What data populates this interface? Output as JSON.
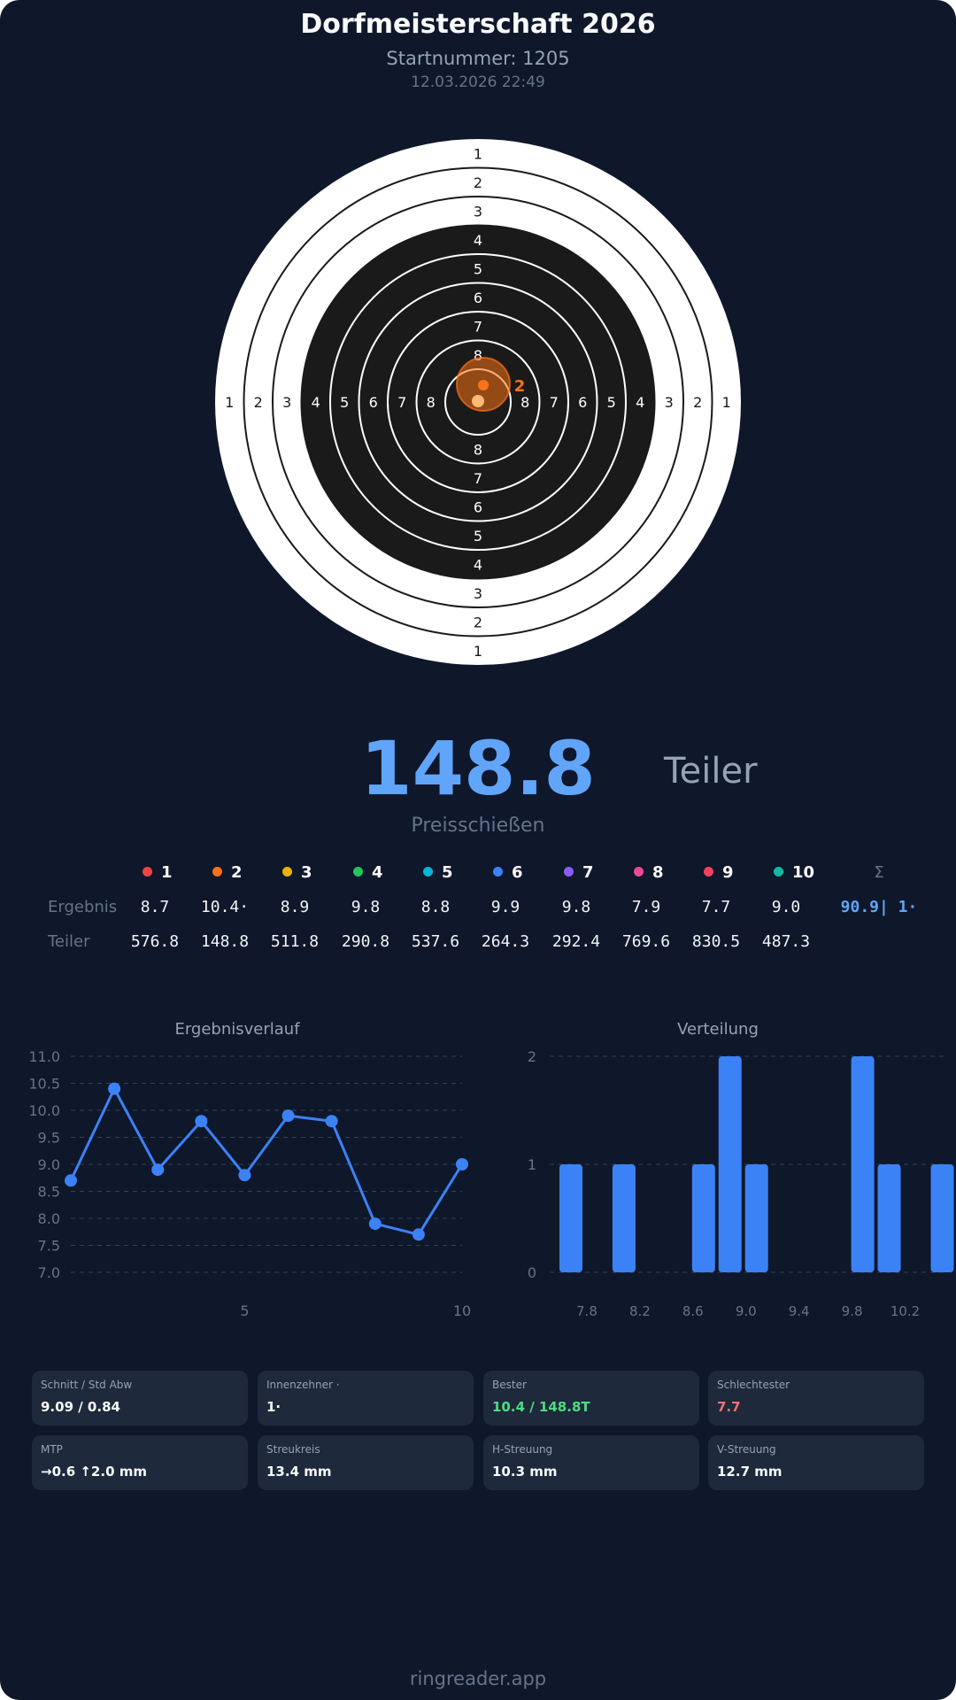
{
  "header": {
    "title": "Dorfmeisterschaft 2026",
    "start_number": "Startnummer: 1205",
    "datetime": "12.03.2026 22:49"
  },
  "target": {
    "ring_labels": [
      "1",
      "2",
      "3",
      "4",
      "5",
      "6",
      "7",
      "8"
    ],
    "highlighted_shot_label": "2",
    "highlight_color": "#f97316"
  },
  "result": {
    "value": "148.8",
    "unit": "Teiler",
    "mode": "Preisschießen"
  },
  "table": {
    "shots": [
      {
        "n": "1",
        "color": "#ef4444",
        "ergebnis": "8.7",
        "teiler": "576.8"
      },
      {
        "n": "2",
        "color": "#f97316",
        "ergebnis": "10.4·",
        "teiler": "148.8"
      },
      {
        "n": "3",
        "color": "#eab308",
        "ergebnis": "8.9",
        "teiler": "511.8"
      },
      {
        "n": "4",
        "color": "#22c55e",
        "ergebnis": "9.8",
        "teiler": "290.8"
      },
      {
        "n": "5",
        "color": "#06b6d4",
        "ergebnis": "8.8",
        "teiler": "537.6"
      },
      {
        "n": "6",
        "color": "#3b82f6",
        "ergebnis": "9.9",
        "teiler": "264.3"
      },
      {
        "n": "7",
        "color": "#8b5cf6",
        "ergebnis": "9.8",
        "teiler": "292.4"
      },
      {
        "n": "8",
        "color": "#ec4899",
        "ergebnis": "7.9",
        "teiler": "769.6"
      },
      {
        "n": "9",
        "color": "#f43f5e",
        "ergebnis": "7.7",
        "teiler": "830.5"
      },
      {
        "n": "10",
        "color": "#14b8a6",
        "ergebnis": "9.0",
        "teiler": "487.3"
      }
    ],
    "sum_header": "Σ",
    "sum_ergebnis": "90.9| 1·",
    "row_labels": {
      "ergebnis": "Ergebnis",
      "teiler": "Teiler"
    }
  },
  "chart_data": [
    {
      "type": "line",
      "title": "Ergebnisverlauf",
      "x": [
        1,
        2,
        3,
        4,
        5,
        6,
        7,
        8,
        9,
        10
      ],
      "y": [
        8.7,
        10.4,
        8.9,
        9.8,
        8.8,
        9.9,
        9.8,
        7.9,
        7.7,
        9.0
      ],
      "ylim": [
        7.0,
        11.0
      ],
      "yticks": [
        "7.0",
        "7.5",
        "8.0",
        "8.5",
        "9.0",
        "9.5",
        "10.0",
        "10.5",
        "11.0"
      ],
      "xticks": [
        "5",
        "10"
      ],
      "xlim": [
        1,
        10
      ],
      "grid": true,
      "color": "#3b82f6"
    },
    {
      "type": "bar",
      "title": "Verteilung",
      "bins": [
        7.6,
        8.0,
        8.6,
        8.8,
        9.0,
        9.8,
        10.0,
        10.4
      ],
      "counts": [
        1,
        1,
        1,
        2,
        1,
        2,
        1,
        1
      ],
      "xticks": [
        "7.8",
        "8.2",
        "8.6",
        "9.0",
        "9.4",
        "9.8",
        "10.2"
      ],
      "xlim": [
        7.52,
        10.47
      ],
      "yticks": [
        "0",
        "1",
        "2"
      ],
      "ylim": [
        0,
        2
      ],
      "grid": true,
      "color": "#3b82f6"
    }
  ],
  "stats": [
    {
      "label": "Schnitt / Std Abw",
      "value": "9.09 / 0.84",
      "color": "#f8fafc"
    },
    {
      "label": "Innenzehner ·",
      "value": "1·",
      "color": "#f8fafc"
    },
    {
      "label": "Bester",
      "value": "10.4 / 148.8T",
      "color": "#4ade80"
    },
    {
      "label": "Schlechtester",
      "value": "7.7",
      "color": "#f87171"
    },
    {
      "label": "MTP",
      "value": "→0.6 ↑2.0 mm",
      "color": "#f8fafc"
    },
    {
      "label": "Streukreis",
      "value": "13.4 mm",
      "color": "#f8fafc"
    },
    {
      "label": "H-Streuung",
      "value": "10.3 mm",
      "color": "#f8fafc"
    },
    {
      "label": "V-Streuung",
      "value": "12.7 mm",
      "color": "#f8fafc"
    }
  ],
  "footer": "ringreader.app"
}
